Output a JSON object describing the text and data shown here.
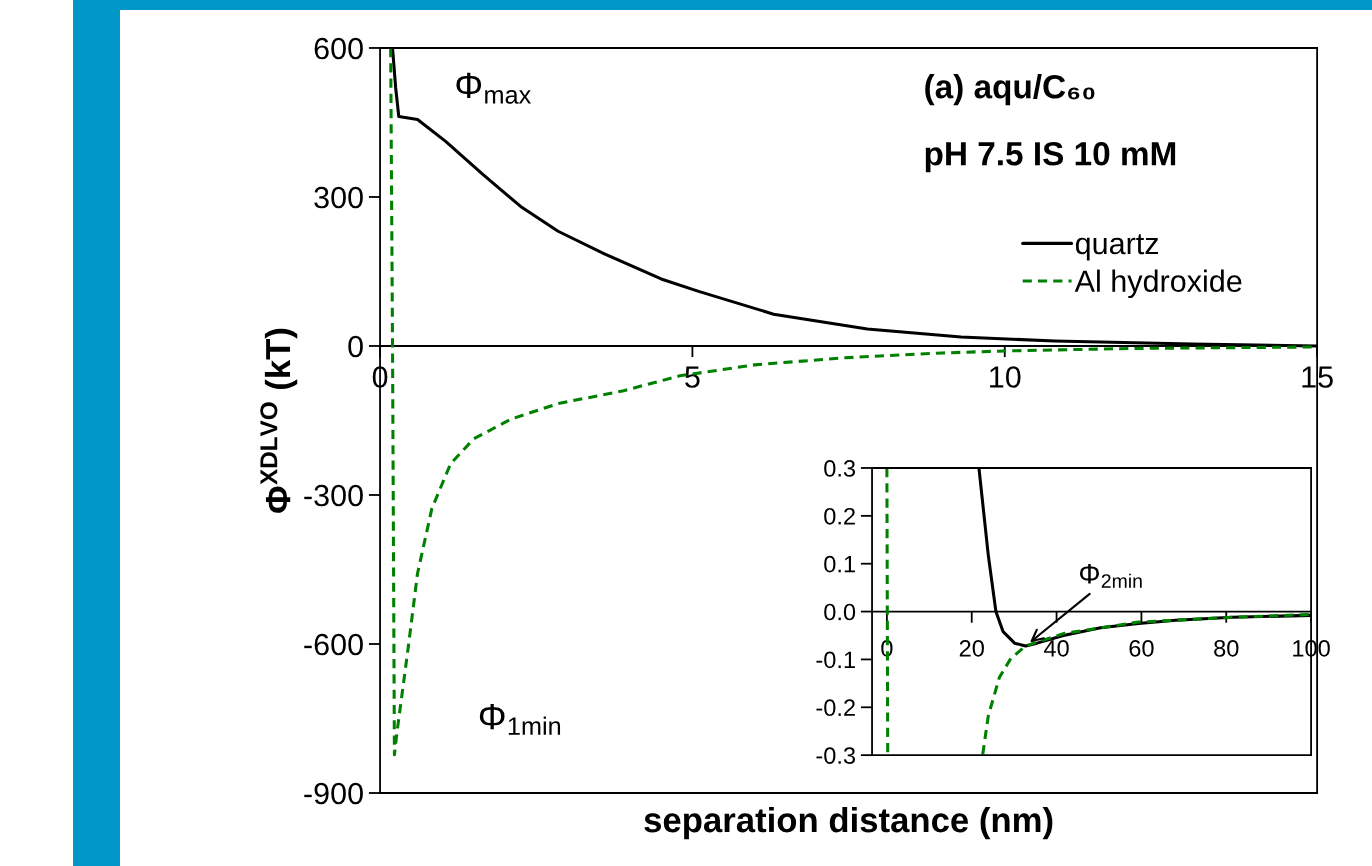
{
  "chart_data": [
    {
      "type": "line",
      "title": "(a) aqu/C₆₀",
      "subtitle": "pH 7.5 IS 10 mM",
      "xlabel": "separation distance (nm)",
      "ylabel": "Φ$^{XDLVO}$ (kT)",
      "xlim": [
        0,
        15
      ],
      "xticks": [
        0,
        5,
        10,
        15
      ],
      "ylim": [
        -900,
        600
      ],
      "yticks": [
        -900,
        -600,
        -300,
        0,
        300,
        600
      ],
      "grid": false,
      "legend": "top right",
      "marker": "none",
      "series": [
        {
          "name": "quartz",
          "color": "#000000",
          "line_style": "solid",
          "x": [
            0.2,
            0.25,
            0.3,
            0.6,
            1.05,
            1.65,
            2.25,
            2.85,
            3.6,
            4.5,
            5.1,
            6.3,
            7.8,
            9.3,
            10.8,
            13.0,
            15.0
          ],
          "values": [
            600,
            520,
            462,
            456,
            412,
            345,
            281,
            231,
            185,
            135,
            110,
            64,
            34,
            18,
            10,
            4,
            0
          ]
        },
        {
          "name": "Al hydroxide",
          "color": "#008000",
          "line_style": "dashed",
          "x": [
            0.17,
            0.2,
            0.23,
            0.27,
            0.45,
            0.6,
            0.83,
            1.13,
            1.5,
            2.1,
            2.85,
            3.9,
            4.8,
            6.0,
            7.4,
            9.0,
            10.0,
            12.0,
            15.0
          ],
          "values": [
            600,
            0,
            -823,
            -779,
            -608,
            -458,
            -327,
            -237,
            -187,
            -147,
            -116,
            -90,
            -60,
            -38,
            -24,
            -14,
            -10,
            -5,
            -2
          ]
        }
      ],
      "annotations": [
        {
          "text": "Φ$_{max}$",
          "x": 0.3,
          "y": 462
        },
        {
          "text": "Φ$_{1min}$",
          "x": 0.23,
          "y": -823
        }
      ]
    },
    {
      "type": "line",
      "xlim": [
        -3.5,
        100
      ],
      "xticks": [
        0,
        20,
        40,
        60,
        80,
        100
      ],
      "ylim": [
        -0.3,
        0.3
      ],
      "yticks": [
        {
          "value": -0.3,
          "label": "-0.3"
        },
        {
          "value": -0.2,
          "label": "-0.2"
        },
        {
          "value": -0.1,
          "label": "-0.1"
        },
        {
          "value": 0,
          "label": "0.0"
        },
        {
          "value": 0.1,
          "label": "0.1"
        },
        {
          "value": 0.2,
          "label": "0.2"
        },
        {
          "value": 0.3,
          "label": "0.3"
        }
      ],
      "grid": false,
      "marker": "none",
      "series": [
        {
          "color": "#000000",
          "line_style": "solid",
          "x": [
            21.7,
            23.9,
            25.7,
            27.4,
            30.1,
            32.7,
            35.4,
            41.6,
            50.4,
            59.3,
            68.1,
            81.4,
            100
          ],
          "values": [
            0.3,
            0.118,
            0,
            -0.042,
            -0.066,
            -0.072,
            -0.066,
            -0.05,
            -0.034,
            -0.025,
            -0.018,
            -0.012,
            -0.008
          ]
        },
        {
          "color": "#008000",
          "line_style": "dashed",
          "x": [
            0,
            0.2,
            10,
            22.6,
            23.9,
            26.5,
            29.2,
            32.7,
            41.6,
            59.3,
            81.4,
            100
          ],
          "values": [
            0.3,
            -0.3,
            null,
            -0.298,
            -0.218,
            -0.138,
            -0.098,
            -0.072,
            -0.046,
            -0.022,
            -0.012,
            -0.006
          ]
        }
      ],
      "annotations": [
        {
          "text": "Φ$_{2min}$",
          "x": 32.7,
          "y": -0.072
        }
      ]
    }
  ]
}
